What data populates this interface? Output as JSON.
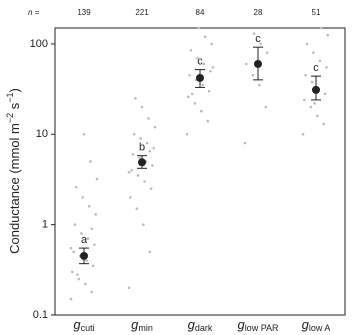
{
  "chart_data": {
    "type": "dot_error",
    "n_label": "n =",
    "n": [
      139,
      221,
      84,
      28,
      51
    ],
    "ylabel": {
      "text": "Conductance (mmol m",
      "sup1": "−2",
      "mid": " s",
      "sup2": "−1",
      "end": ")"
    },
    "categories": [
      {
        "symbol": "g",
        "subscript": "cuti"
      },
      {
        "symbol": "g",
        "subscript": "min"
      },
      {
        "symbol": "g",
        "subscript": "dark"
      },
      {
        "symbol": "g",
        "subscript": "low PAR"
      },
      {
        "symbol": "g",
        "subscript": "low A"
      }
    ],
    "means": [
      0.45,
      4.9,
      42,
      60,
      31
    ],
    "lower": [
      0.37,
      4.2,
      33,
      40,
      24
    ],
    "upper": [
      0.55,
      5.8,
      52,
      92,
      44
    ],
    "letters": [
      "a",
      "b",
      "c",
      "c",
      "c"
    ],
    "points": [
      [
        0.15,
        0.18,
        0.22,
        0.25,
        0.3,
        0.35,
        0.4,
        0.45,
        0.5,
        0.6,
        0.7,
        0.8,
        1.0,
        1.3,
        1.6,
        2.0,
        2.6,
        3.2,
        5,
        10,
        0.28,
        0.55,
        0.9
      ],
      [
        0.2,
        0.5,
        1.0,
        1.5,
        2.0,
        2.5,
        3.0,
        3.5,
        4.0,
        4.5,
        5.0,
        5.5,
        6.0,
        7.0,
        8.0,
        9.0,
        10,
        12,
        15,
        20,
        25,
        3.8,
        6.5
      ],
      [
        10,
        14,
        18,
        22,
        26,
        30,
        35,
        40,
        45,
        50,
        60,
        70,
        85,
        100,
        120,
        150,
        28,
        55
      ],
      [
        8,
        20,
        35,
        45,
        60,
        80,
        100,
        130
      ],
      [
        10,
        13,
        16,
        20,
        24,
        28,
        32,
        38,
        45,
        55,
        65,
        80,
        100,
        125,
        150,
        22
      ]
    ],
    "point_color": "#bbbbbb",
    "marker_color": "#222222",
    "ylim": [
      0.1,
      150
    ],
    "yticks": [
      0.1,
      1,
      10,
      100
    ],
    "log_y": true
  }
}
